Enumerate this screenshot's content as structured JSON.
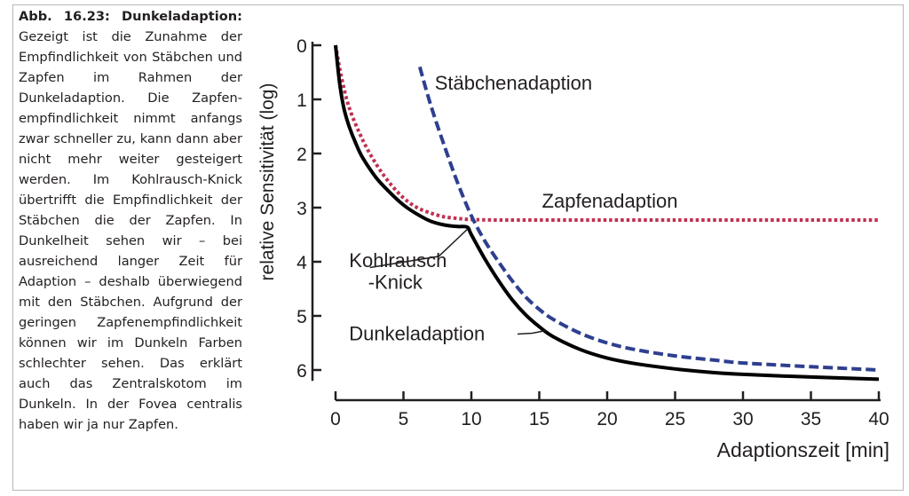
{
  "caption": {
    "title": "Abb. 16.23: Dunkeladaption:",
    "body": "Gezeigt ist die Zunahme der Empfindlichkeit von Stäbchen und Zapfen im Rahmen der Dunkeladaption. Die Zapfen­empfindlichkeit nimmt an­fangs zwar schneller zu, kann dann aber nicht mehr weiter gesteigert werden. Im Kohl­rausch-Knick übertrifft die Empfindlichkeit der Stäbchen die der Zapfen. In Dunkelheit sehen wir – bei ausreichend langer Zeit für Adaption – deshalb überwiegend mit den Stäbchen. Aufgrund der geringen Zapfenempfindlich­keit können wir im Dunkeln Farben schlechter sehen. Das erklärt auch das Zentral­skotom im Dunkeln. In der Fovea centralis haben wir ja nur Zapfen."
  },
  "chart_data": {
    "type": "line",
    "title": "",
    "xlabel": "Adaptionszeit [min]",
    "ylabel": "relative Sensitivität (log)",
    "xlim": [
      0,
      40
    ],
    "ylim": [
      0,
      6.2
    ],
    "y_inverted": true,
    "x_ticks": [
      0,
      5,
      10,
      15,
      20,
      25,
      30,
      35,
      40
    ],
    "y_ticks": [
      0,
      1,
      2,
      3,
      4,
      5,
      6
    ],
    "grid": false,
    "colors": {
      "zapfen": "#c0304f",
      "staebchen": "#2e3f8f",
      "dunkel": "#000000",
      "text": "#231f20"
    },
    "series": [
      {
        "name": "Zapfenadaption",
        "style": "dotted",
        "x": [
          0,
          0.4,
          1,
          2,
          3,
          4,
          5,
          6,
          7,
          8,
          9,
          10,
          12,
          15,
          20,
          25,
          30,
          35,
          40
        ],
        "y": [
          0,
          0.55,
          1.15,
          1.75,
          2.2,
          2.55,
          2.82,
          3.0,
          3.1,
          3.17,
          3.2,
          3.22,
          3.23,
          3.23,
          3.23,
          3.23,
          3.23,
          3.23,
          3.23
        ]
      },
      {
        "name": "Stäbchenadaption",
        "style": "dashed",
        "x": [
          6.2,
          7,
          8,
          9,
          10,
          11,
          12,
          13,
          14,
          15,
          16,
          18,
          20,
          22,
          25,
          28,
          30,
          35,
          40
        ],
        "y": [
          0.4,
          1.1,
          1.85,
          2.55,
          3.15,
          3.62,
          4.0,
          4.35,
          4.65,
          4.88,
          5.06,
          5.32,
          5.5,
          5.62,
          5.74,
          5.82,
          5.87,
          5.94,
          6.0
        ]
      },
      {
        "name": "Dunkeladaption",
        "style": "solid",
        "x": [
          0,
          0.3,
          0.6,
          1,
          1.5,
          2,
          3,
          4,
          5,
          6,
          7,
          8,
          9,
          9.7,
          10,
          11,
          12,
          13,
          14,
          15,
          16,
          18,
          20,
          22,
          25,
          28,
          30,
          35,
          40
        ],
        "y": [
          0,
          0.7,
          1.15,
          1.5,
          1.82,
          2.08,
          2.45,
          2.72,
          2.95,
          3.12,
          3.25,
          3.32,
          3.35,
          3.36,
          3.5,
          3.95,
          4.35,
          4.7,
          4.98,
          5.2,
          5.38,
          5.62,
          5.78,
          5.88,
          5.98,
          6.05,
          6.08,
          6.13,
          6.17
        ]
      }
    ],
    "annotations": [
      {
        "text": "Stäbchenadaption",
        "x": 7.3,
        "y": 0.82
      },
      {
        "text": "Zapfenadaption",
        "x": 15.2,
        "y": 3.0
      },
      {
        "text": "Kohlrausch",
        "x": 1,
        "y": 4.1
      },
      {
        "text": "-Knick",
        "x": 2.4,
        "y": 4.5
      },
      {
        "text": "Dunkeladaption",
        "x": 1,
        "y": 5.45
      }
    ]
  }
}
